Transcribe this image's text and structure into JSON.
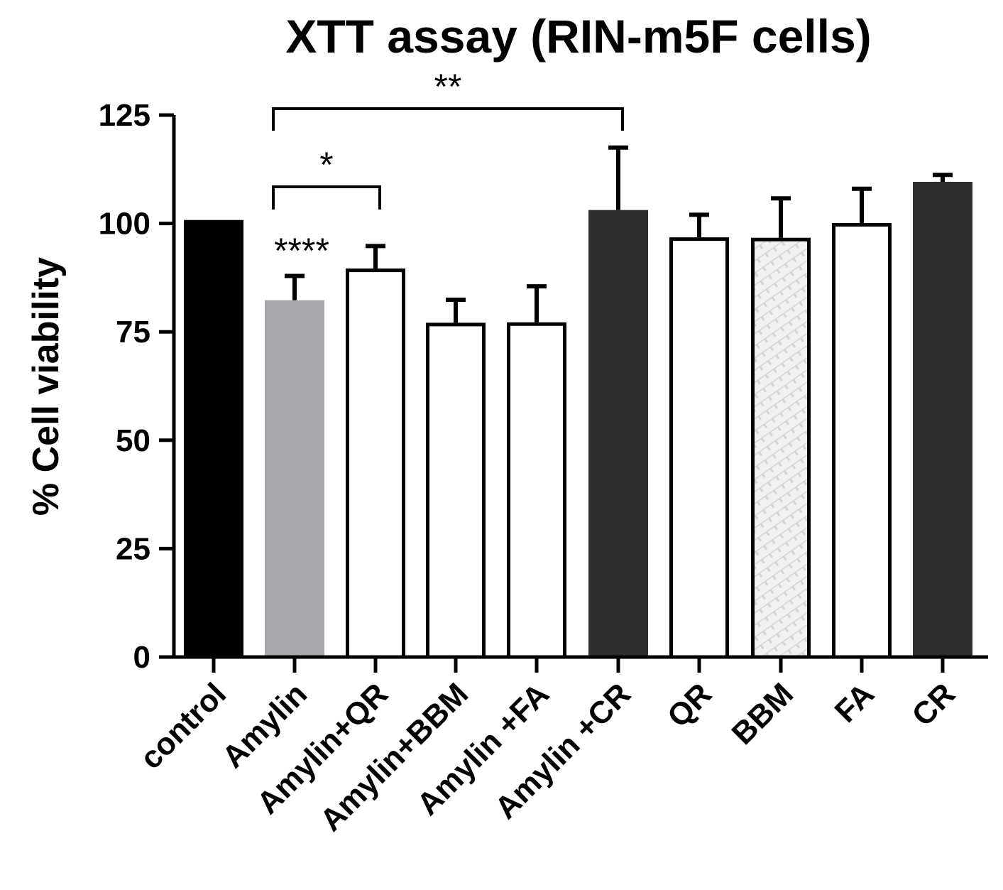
{
  "chart_data": {
    "type": "bar",
    "title": "XTT assay (RIN-m5F cells)",
    "xlabel": "",
    "ylabel": "% Cell viability",
    "ylim": [
      0,
      125
    ],
    "yticks": [
      0,
      25,
      50,
      75,
      100,
      125
    ],
    "grid": false,
    "legend": "none",
    "categories": [
      "control",
      "Amylin",
      "Amylin+QR",
      "Amylin+BBM",
      "Amylin +FA",
      "Amylin +CR",
      "QR",
      "BBM",
      "FA",
      "CR"
    ],
    "values": [
      100.8,
      82.3,
      89.6,
      77.1,
      77.2,
      103.1,
      96.8,
      96.7,
      100.1,
      109.6
    ],
    "errors": [
      0,
      5.6,
      5.2,
      5.3,
      8.3,
      14.4,
      5.2,
      9.1,
      7.9,
      1.6
    ],
    "bar_colors": [
      "#000000",
      "#a7a6ab",
      "#ffffff",
      "#ffffff",
      "#ffffff",
      "#2f2f2f",
      "#ffffff",
      "hatched",
      "#ffffff",
      "#2f2f2f"
    ],
    "annotations": [
      {
        "text": "****",
        "category": "Amylin"
      },
      {
        "text": "*",
        "from": "Amylin",
        "to": "Amylin+QR"
      },
      {
        "text": "**",
        "from": "Amylin",
        "to": "Amylin +CR"
      }
    ]
  }
}
